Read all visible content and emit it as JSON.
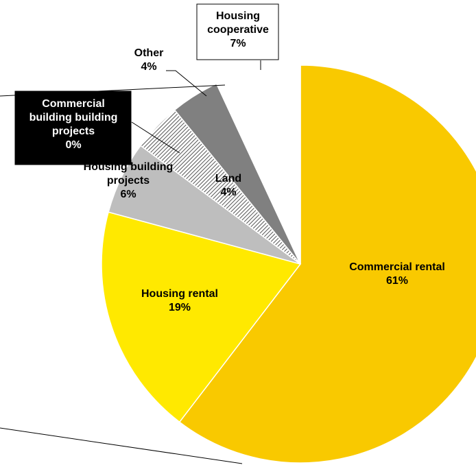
{
  "chart_data": {
    "type": "pie",
    "slices": [
      {
        "name": "Commercial rental",
        "value": 61,
        "value_label": "61%",
        "color": "#F9C900"
      },
      {
        "name": "Housing rental",
        "value": 19,
        "value_label": "19%",
        "color": "#FFE900"
      },
      {
        "name": "Housing building projects",
        "value": 6,
        "value_label": "6%",
        "color": "#BEBEBE"
      },
      {
        "name": "Commercial building building projects",
        "value": 0,
        "value_label": "0%",
        "color": "#000000"
      },
      {
        "name": "Land",
        "value": 4,
        "value_label": "4%",
        "color": "#D9D9D9",
        "pattern": "diagonal-hatch"
      },
      {
        "name": "Other",
        "value": 4,
        "value_label": "4%",
        "color": "#808080"
      },
      {
        "name": "Housing cooperative",
        "value": 7,
        "value_label": "7%",
        "color": "#FFFFFF"
      }
    ],
    "start": "12 o'clock",
    "direction": "clockwise",
    "legend": "none"
  }
}
